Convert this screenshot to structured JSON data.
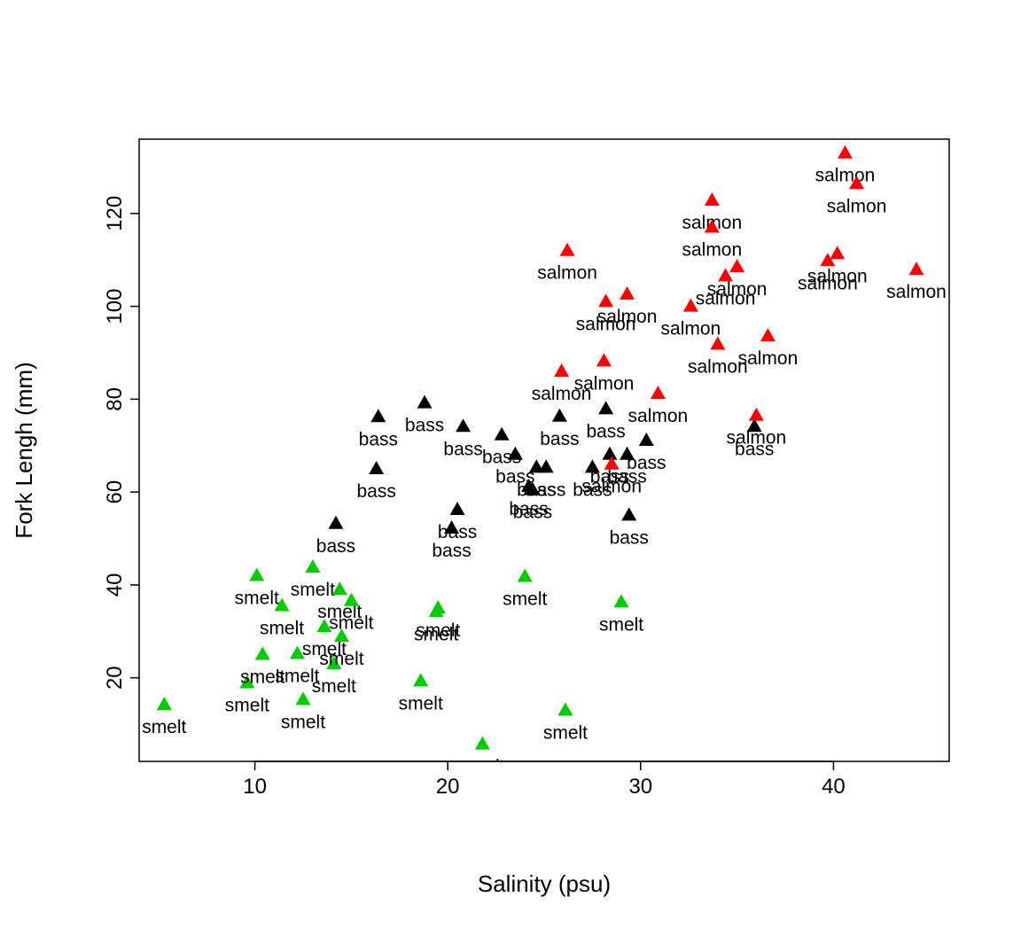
{
  "chart_data": {
    "type": "scatter",
    "title": "",
    "xlabel": "Salinity (psu)",
    "ylabel": "Fork Lengh (mm)",
    "xlim": [
      4,
      46
    ],
    "ylim": [
      2,
      136
    ],
    "xticks": [
      10,
      20,
      30,
      40
    ],
    "yticks": [
      20,
      40,
      60,
      80,
      100,
      120
    ],
    "grid": false,
    "legend": "none",
    "colors": {
      "smelt": "#00cd00",
      "bass": "#000000",
      "salmon": "#ff0000"
    },
    "points": [
      {
        "x": 5.3,
        "y": 14.2,
        "label": "smelt"
      },
      {
        "x": 9.6,
        "y": 18.9,
        "label": "smelt"
      },
      {
        "x": 10.1,
        "y": 42.0,
        "label": "smelt"
      },
      {
        "x": 10.4,
        "y": 25.0,
        "label": "smelt"
      },
      {
        "x": 11.4,
        "y": 35.5,
        "label": "smelt"
      },
      {
        "x": 12.2,
        "y": 25.2,
        "label": "smelt"
      },
      {
        "x": 12.5,
        "y": 15.3,
        "label": "smelt"
      },
      {
        "x": 13.0,
        "y": 43.8,
        "label": "smelt"
      },
      {
        "x": 13.6,
        "y": 31.0,
        "label": "smelt"
      },
      {
        "x": 14.1,
        "y": 23.0,
        "label": "smelt"
      },
      {
        "x": 14.4,
        "y": 39.0,
        "label": "smelt"
      },
      {
        "x": 14.5,
        "y": 28.9,
        "label": "smelt"
      },
      {
        "x": 15.0,
        "y": 36.6,
        "label": "smelt"
      },
      {
        "x": 18.6,
        "y": 19.3,
        "label": "smelt"
      },
      {
        "x": 19.4,
        "y": 34.2,
        "label": "smelt"
      },
      {
        "x": 19.5,
        "y": 35.0,
        "label": "smelt"
      },
      {
        "x": 21.8,
        "y": 5.7,
        "label": "smelt"
      },
      {
        "x": 24.0,
        "y": 41.8,
        "label": "smelt"
      },
      {
        "x": 26.1,
        "y": 13.0,
        "label": "smelt"
      },
      {
        "x": 29.0,
        "y": 36.3,
        "label": "smelt"
      },
      {
        "x": 14.2,
        "y": 53.2,
        "label": "bass"
      },
      {
        "x": 16.3,
        "y": 65.0,
        "label": "bass"
      },
      {
        "x": 16.4,
        "y": 76.2,
        "label": "bass"
      },
      {
        "x": 18.8,
        "y": 79.2,
        "label": "bass"
      },
      {
        "x": 20.2,
        "y": 52.2,
        "label": "bass"
      },
      {
        "x": 20.5,
        "y": 56.2,
        "label": "bass"
      },
      {
        "x": 20.8,
        "y": 74.1,
        "label": "bass"
      },
      {
        "x": 22.8,
        "y": 72.3,
        "label": "bass"
      },
      {
        "x": 23.5,
        "y": 68.1,
        "label": "bass"
      },
      {
        "x": 24.2,
        "y": 61.2,
        "label": "bass"
      },
      {
        "x": 24.4,
        "y": 60.5,
        "label": "bass"
      },
      {
        "x": 24.6,
        "y": 65.3,
        "label": "bass"
      },
      {
        "x": 25.1,
        "y": 65.3,
        "label": "bass"
      },
      {
        "x": 25.8,
        "y": 76.3,
        "label": "bass"
      },
      {
        "x": 27.5,
        "y": 65.3,
        "label": "bass"
      },
      {
        "x": 28.2,
        "y": 77.9,
        "label": "bass"
      },
      {
        "x": 28.4,
        "y": 68.1,
        "label": "bass"
      },
      {
        "x": 29.3,
        "y": 68.1,
        "label": "bass"
      },
      {
        "x": 29.4,
        "y": 55.0,
        "label": "bass"
      },
      {
        "x": 30.3,
        "y": 71.1,
        "label": "bass"
      },
      {
        "x": 35.9,
        "y": 74.1,
        "label": "bass"
      },
      {
        "x": 25.9,
        "y": 86.0,
        "label": "salmon"
      },
      {
        "x": 26.2,
        "y": 112.0,
        "label": "salmon"
      },
      {
        "x": 28.1,
        "y": 88.2,
        "label": "salmon"
      },
      {
        "x": 28.2,
        "y": 101.0,
        "label": "salmon"
      },
      {
        "x": 28.5,
        "y": 66.0,
        "label": "salmon"
      },
      {
        "x": 29.3,
        "y": 102.6,
        "label": "salmon"
      },
      {
        "x": 30.9,
        "y": 81.2,
        "label": "salmon"
      },
      {
        "x": 32.6,
        "y": 100.0,
        "label": "salmon"
      },
      {
        "x": 33.7,
        "y": 122.8,
        "label": "salmon"
      },
      {
        "x": 33.7,
        "y": 117.0,
        "label": "salmon"
      },
      {
        "x": 34.0,
        "y": 91.8,
        "label": "salmon"
      },
      {
        "x": 34.4,
        "y": 106.5,
        "label": "salmon"
      },
      {
        "x": 35.0,
        "y": 108.5,
        "label": "salmon"
      },
      {
        "x": 36.0,
        "y": 76.5,
        "label": "salmon"
      },
      {
        "x": 36.6,
        "y": 93.6,
        "label": "salmon"
      },
      {
        "x": 39.7,
        "y": 109.8,
        "label": "salmon"
      },
      {
        "x": 40.2,
        "y": 111.3,
        "label": "salmon"
      },
      {
        "x": 40.6,
        "y": 133.0,
        "label": "salmon"
      },
      {
        "x": 41.2,
        "y": 126.4,
        "label": "salmon"
      },
      {
        "x": 44.3,
        "y": 107.9,
        "label": "salmon"
      }
    ]
  }
}
